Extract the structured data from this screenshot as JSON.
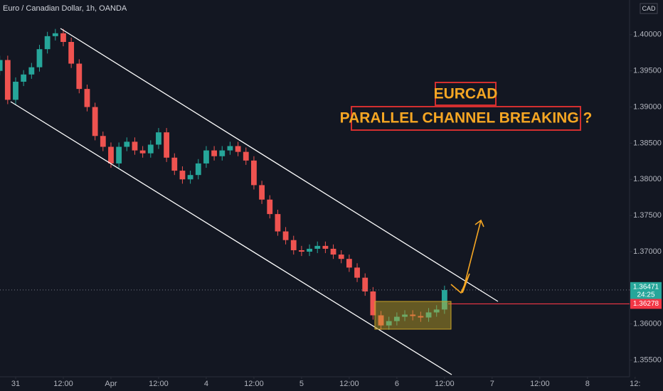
{
  "chart_data": {
    "type": "candlestick",
    "title": "Euro / Canadian Dollar, 1h, OANDA",
    "currency": "CAD",
    "annotations": [
      "EURCAD",
      "PARALLEL CHANNEL BREAKING ?"
    ],
    "up_color": "#26a69a",
    "down_color": "#ef5350",
    "x": [
      -4,
      -2,
      0,
      2,
      4,
      6,
      8,
      10,
      12,
      14,
      16,
      18,
      20,
      22,
      24,
      26,
      28,
      30,
      32,
      34,
      36,
      38,
      40,
      42,
      44,
      46,
      48,
      50,
      52,
      54,
      56,
      58,
      60,
      62,
      64,
      66,
      68,
      70,
      72,
      74,
      76,
      78,
      80,
      82,
      84,
      86,
      88,
      90,
      92,
      94,
      96,
      98,
      100,
      102,
      104,
      106,
      108
    ],
    "open": [
      1.395,
      1.3965,
      1.391,
      1.3935,
      1.3945,
      1.3955,
      1.398,
      1.3998,
      1.4002,
      1.399,
      1.396,
      1.3925,
      1.39,
      1.386,
      1.3845,
      1.3822,
      1.3845,
      1.3852,
      1.384,
      1.3836,
      1.3848,
      1.3865,
      1.383,
      1.3812,
      1.38,
      1.3806,
      1.3822,
      1.384,
      1.3832,
      1.384,
      1.3846,
      1.3838,
      1.3826,
      1.3792,
      1.3772,
      1.3752,
      1.3728,
      1.3716,
      1.3702,
      1.37,
      1.3704,
      1.3708,
      1.3704,
      1.3696,
      1.369,
      1.3678,
      1.3664,
      1.3645,
      1.3612,
      1.3598,
      1.3604,
      1.361,
      1.3613,
      1.3611,
      1.3609,
      1.3616,
      1.362
    ],
    "high": [
      1.3971,
      1.3971,
      1.3941,
      1.3951,
      1.3961,
      1.3986,
      1.4004,
      1.4008,
      1.4008,
      1.3996,
      1.3966,
      1.3931,
      1.3906,
      1.3866,
      1.3851,
      1.3851,
      1.3858,
      1.3858,
      1.3846,
      1.3854,
      1.3871,
      1.3871,
      1.3836,
      1.3818,
      1.3812,
      1.3828,
      1.3846,
      1.3846,
      1.3846,
      1.3852,
      1.3852,
      1.3844,
      1.3832,
      1.3798,
      1.3778,
      1.3758,
      1.3734,
      1.3722,
      1.3708,
      1.371,
      1.3714,
      1.3714,
      1.371,
      1.3702,
      1.3696,
      1.3684,
      1.367,
      1.3651,
      1.3618,
      1.361,
      1.3616,
      1.3619,
      1.3619,
      1.3617,
      1.3622,
      1.3626,
      1.3653
    ],
    "low": [
      1.3944,
      1.3904,
      1.3904,
      1.3929,
      1.3939,
      1.3949,
      1.3974,
      1.3992,
      1.3984,
      1.3954,
      1.3919,
      1.3894,
      1.3854,
      1.3839,
      1.3816,
      1.3816,
      1.3839,
      1.3834,
      1.383,
      1.383,
      1.3842,
      1.3824,
      1.3806,
      1.3794,
      1.3794,
      1.38,
      1.3816,
      1.3826,
      1.3826,
      1.3834,
      1.3832,
      1.382,
      1.3786,
      1.3766,
      1.3746,
      1.3722,
      1.371,
      1.3696,
      1.3694,
      1.3694,
      1.3698,
      1.3698,
      1.369,
      1.3684,
      1.3672,
      1.3658,
      1.3639,
      1.3606,
      1.3592,
      1.3592,
      1.3598,
      1.3604,
      1.3605,
      1.3603,
      1.3603,
      1.361,
      1.3614
    ],
    "close": [
      1.3965,
      1.391,
      1.3935,
      1.3945,
      1.3955,
      1.398,
      1.3998,
      1.4002,
      1.399,
      1.396,
      1.3925,
      1.39,
      1.386,
      1.3845,
      1.3822,
      1.3845,
      1.3852,
      1.384,
      1.3836,
      1.3848,
      1.3865,
      1.383,
      1.3812,
      1.38,
      1.3806,
      1.3822,
      1.384,
      1.3832,
      1.384,
      1.3846,
      1.3838,
      1.3826,
      1.3792,
      1.3772,
      1.3752,
      1.3728,
      1.3716,
      1.3702,
      1.37,
      1.3704,
      1.3708,
      1.3704,
      1.3696,
      1.369,
      1.3678,
      1.3664,
      1.3645,
      1.3612,
      1.3598,
      1.3604,
      1.361,
      1.3613,
      1.3611,
      1.3609,
      1.3616,
      1.362,
      1.3647
    ],
    "xlim": [
      -3.94,
      154.6
    ],
    "xticks": [
      {
        "value": 0,
        "label": "31"
      },
      {
        "value": 12,
        "label": "12:00"
      },
      {
        "value": 24,
        "label": "Apr"
      },
      {
        "value": 36,
        "label": "12:00"
      },
      {
        "value": 48,
        "label": "4"
      },
      {
        "value": 60,
        "label": "12:00"
      },
      {
        "value": 72,
        "label": "5"
      },
      {
        "value": 84,
        "label": "12:00"
      },
      {
        "value": 96,
        "label": "6"
      },
      {
        "value": 108,
        "label": "12:00"
      },
      {
        "value": 120,
        "label": "7"
      },
      {
        "value": 132,
        "label": "12:00"
      },
      {
        "value": 144,
        "label": "8"
      },
      {
        "value": 156,
        "label": "12:"
      }
    ],
    "ylim": [
      1.3527,
      1.4048
    ],
    "yticks": [
      {
        "value": 1.355,
        "label": "1.35500"
      },
      {
        "value": 1.36,
        "label": "1.36000"
      },
      {
        "value": 1.365,
        "label": "1.36500"
      },
      {
        "value": 1.37,
        "label": "1.37000"
      },
      {
        "value": 1.375,
        "label": "1.37500"
      },
      {
        "value": 1.38,
        "label": "1.38000"
      },
      {
        "value": 1.385,
        "label": "1.38500"
      },
      {
        "value": 1.39,
        "label": "1.39000"
      },
      {
        "value": 1.395,
        "label": "1.39500"
      },
      {
        "value": 1.4,
        "label": "1.40000"
      }
    ],
    "last_price": 1.36471,
    "countdown": "24:25",
    "level_price": 1.36278,
    "level_color": "#f23645"
  }
}
